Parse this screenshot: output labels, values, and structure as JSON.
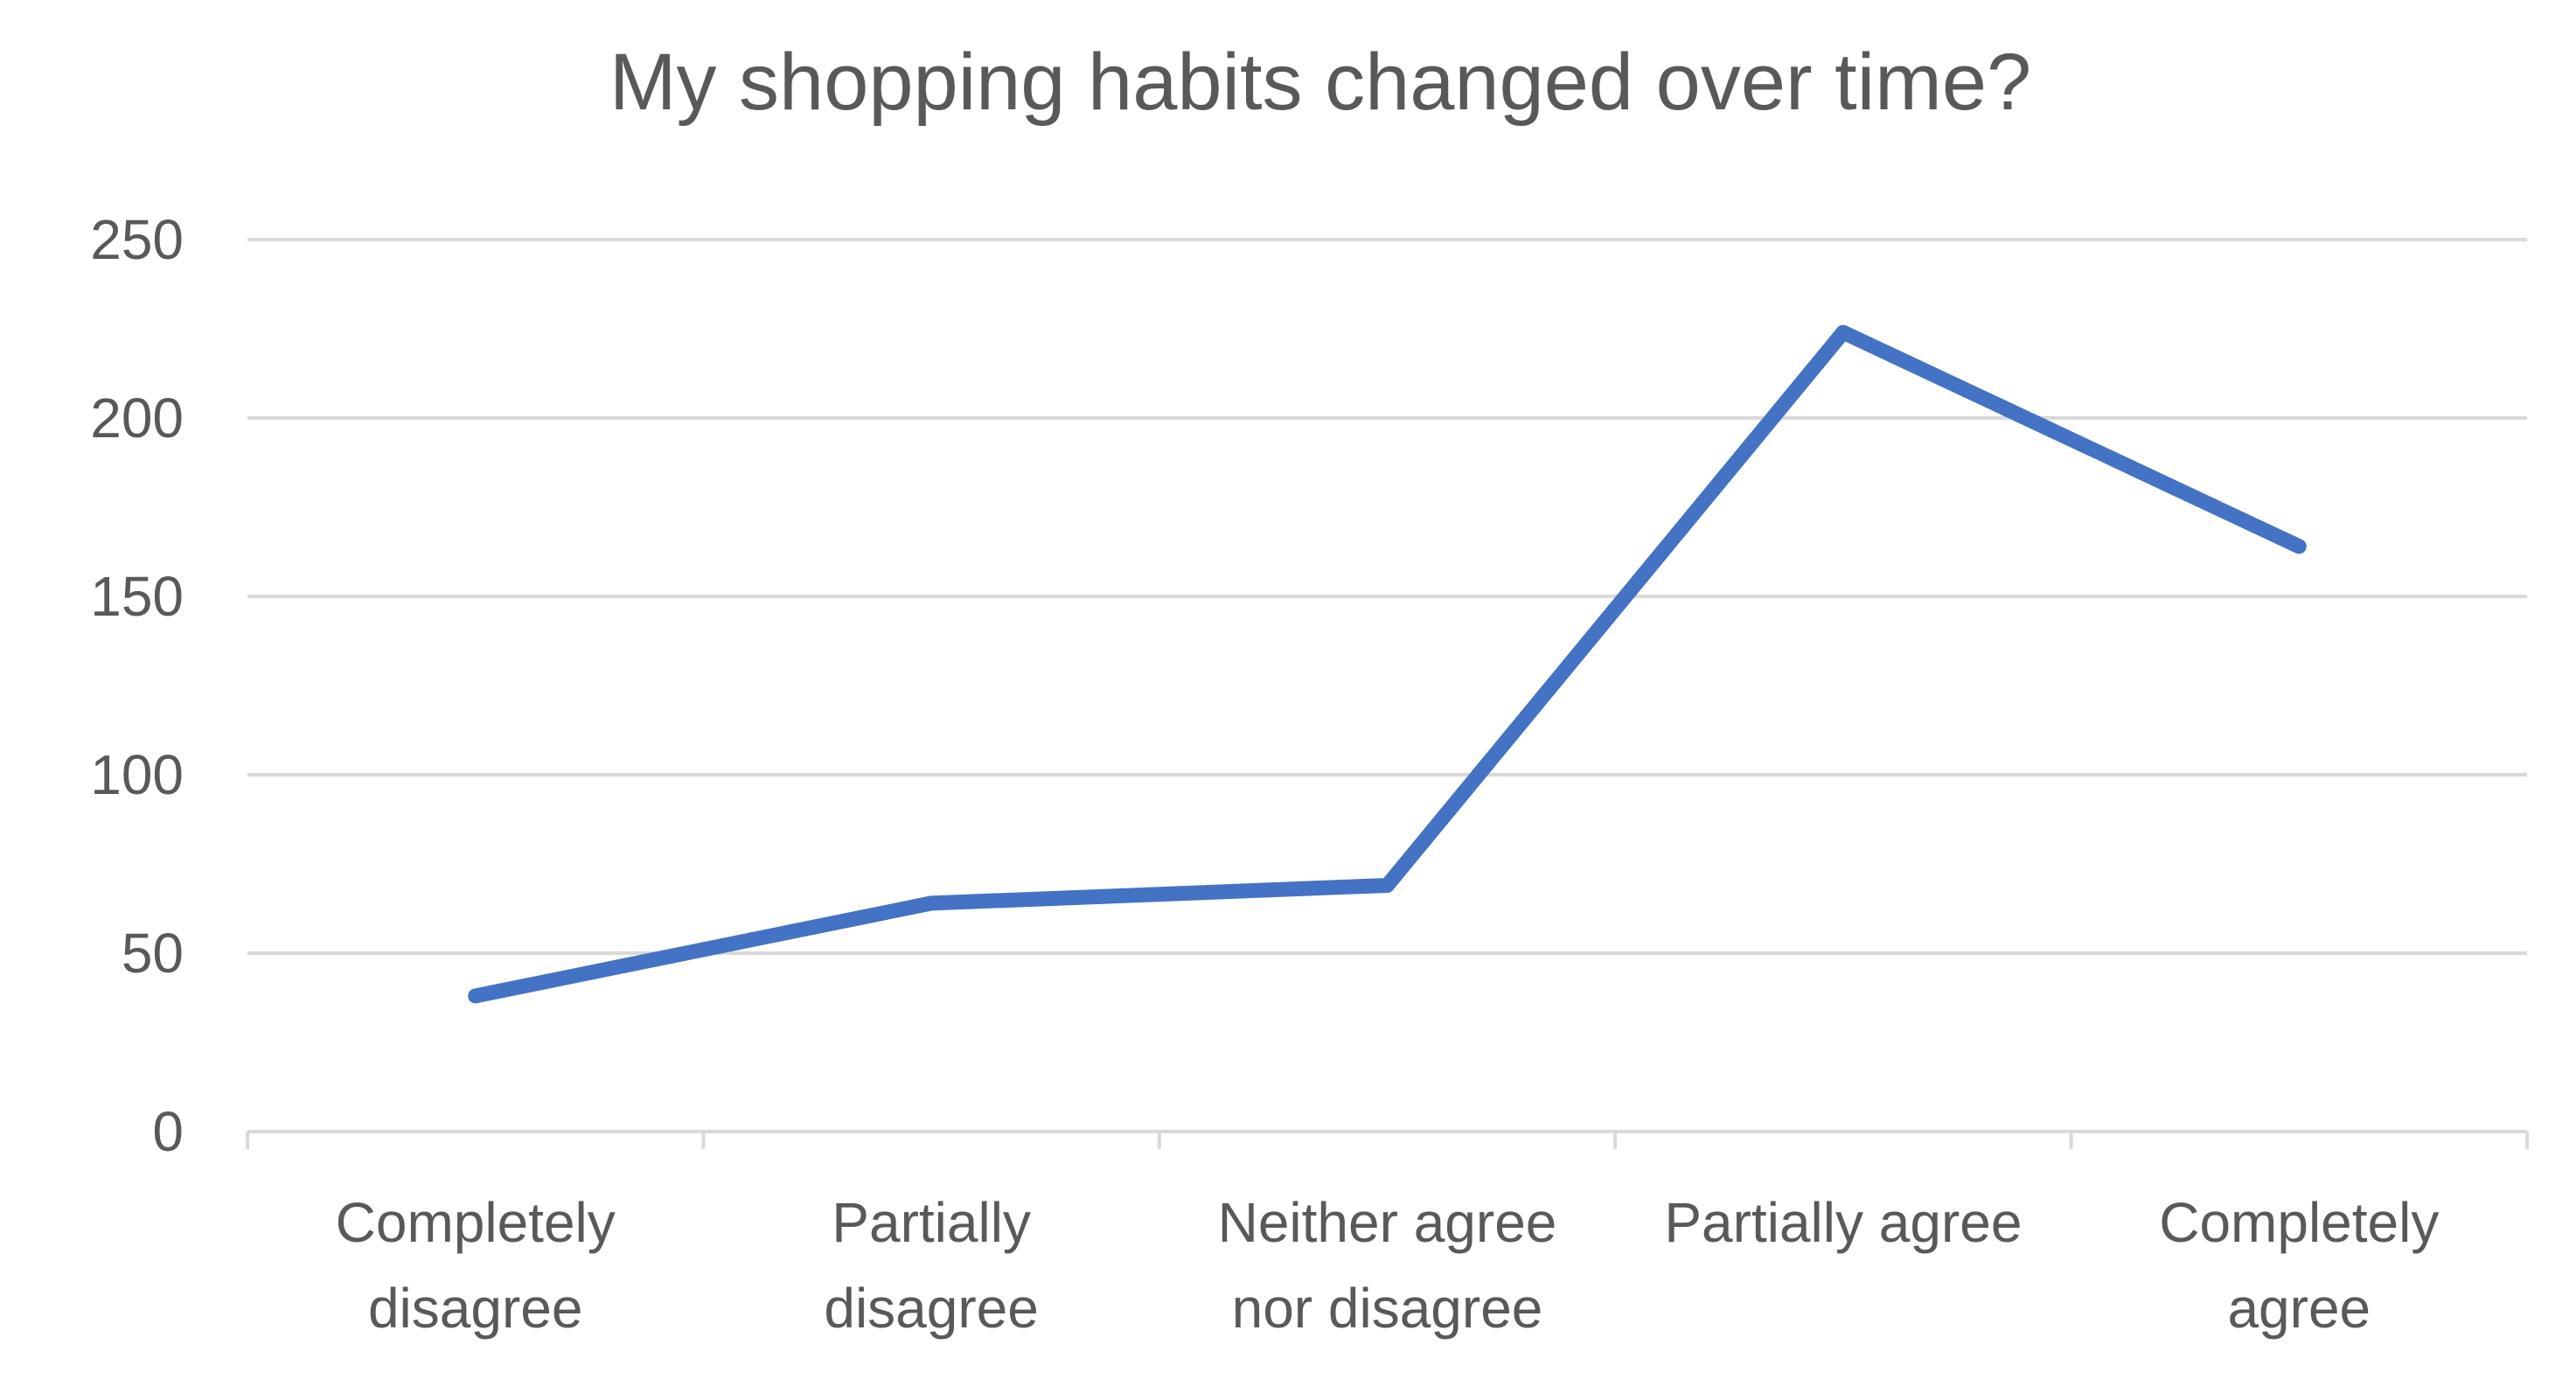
{
  "chart_data": {
    "type": "line",
    "title": "My shopping habits changed over time?",
    "xlabel": "",
    "ylabel": "",
    "categories": [
      [
        "Completely",
        "disagree"
      ],
      [
        "Partially",
        "disagree"
      ],
      [
        "Neither agree",
        "nor disagree"
      ],
      [
        "Partially agree"
      ],
      [
        "Completely",
        "agree"
      ]
    ],
    "values": [
      38,
      64,
      69,
      224,
      164
    ],
    "ylim": [
      0,
      250
    ],
    "yticks": [
      0,
      50,
      100,
      150,
      200,
      250
    ],
    "grid": true,
    "legend": "none",
    "line_color": "#4472C4"
  }
}
